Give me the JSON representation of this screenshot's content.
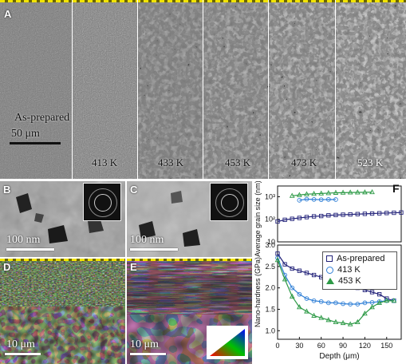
{
  "panel_a": {
    "letter": "A",
    "strip_labels": [
      "As-prepared",
      "413 K",
      "433 K",
      "453 K",
      "473 K",
      "523 K"
    ],
    "scale_label": "50 μm"
  },
  "panel_b": {
    "letter": "B",
    "scale_label": "100 nm"
  },
  "panel_c": {
    "letter": "C",
    "scale_label": "100 nm"
  },
  "panel_d": {
    "letter": "D",
    "scale_label": "10 μm"
  },
  "panel_e": {
    "letter": "E",
    "scale_label": "10 μm"
  },
  "panel_f": {
    "letter": "F",
    "legend": [
      "As-prepared",
      "413 K",
      "453 K"
    ],
    "colors": {
      "as_prepared": "#23237a",
      "k413": "#2f7fd6",
      "k453": "#2e9a47"
    }
  },
  "chart_data": [
    {
      "type": "scatter",
      "ylabel": "Average grain size (nm)",
      "y_scale": "log",
      "ylim": [
        10,
        3000
      ],
      "xlim": [
        0,
        170
      ],
      "y_tick_labels": [
        "10",
        "10²",
        "10³"
      ],
      "series": [
        {
          "name": "As-prepared",
          "x": [
            0,
            10,
            20,
            30,
            40,
            50,
            60,
            70,
            80,
            90,
            100,
            110,
            120,
            130,
            140,
            150,
            160,
            170
          ],
          "values": [
            80,
            95,
            105,
            115,
            125,
            135,
            140,
            150,
            155,
            160,
            165,
            170,
            175,
            180,
            185,
            190,
            195,
            200
          ]
        },
        {
          "name": "413 K",
          "x": [
            30,
            40,
            50,
            60,
            70,
            80
          ],
          "values": [
            700,
            780,
            760,
            740,
            760,
            750
          ]
        },
        {
          "name": "453 K",
          "x": [
            20,
            30,
            40,
            50,
            60,
            70,
            80,
            90,
            100,
            110,
            120,
            130
          ],
          "values": [
            1100,
            1200,
            1300,
            1350,
            1400,
            1450,
            1500,
            1520,
            1550,
            1560,
            1580,
            1600
          ]
        }
      ]
    },
    {
      "type": "scatter",
      "ylabel": "Nano-hardness (GPa)",
      "xlabel": "Depth (μm)",
      "ylim": [
        0.8,
        3.0
      ],
      "xlim": [
        0,
        170
      ],
      "x_tick_labels": [
        "0",
        "30",
        "60",
        "90",
        "120",
        "150"
      ],
      "y_tick_labels": [
        "1.0",
        "1.5",
        "2.0",
        "2.5",
        "3.0"
      ],
      "series": [
        {
          "name": "As-prepared",
          "x": [
            0,
            10,
            20,
            30,
            40,
            50,
            60,
            70,
            80,
            90,
            100,
            110,
            120,
            130,
            140,
            150,
            160
          ],
          "values": [
            2.8,
            2.55,
            2.45,
            2.4,
            2.35,
            2.3,
            2.25,
            2.2,
            2.15,
            2.1,
            2.05,
            2.0,
            1.95,
            1.9,
            1.85,
            1.75,
            1.7
          ]
        },
        {
          "name": "413 K",
          "x": [
            0,
            10,
            20,
            30,
            40,
            50,
            60,
            70,
            80,
            90,
            100,
            110,
            120,
            130,
            140,
            150,
            160
          ],
          "values": [
            2.7,
            2.3,
            2.0,
            1.85,
            1.75,
            1.7,
            1.68,
            1.65,
            1.65,
            1.63,
            1.62,
            1.62,
            1.65,
            1.66,
            1.68,
            1.7,
            1.7
          ]
        },
        {
          "name": "453 K",
          "x": [
            0,
            10,
            20,
            30,
            40,
            50,
            60,
            70,
            80,
            90,
            100,
            110,
            120,
            130,
            140,
            150,
            160
          ],
          "values": [
            2.65,
            2.2,
            1.8,
            1.55,
            1.45,
            1.35,
            1.3,
            1.25,
            1.2,
            1.18,
            1.15,
            1.2,
            1.4,
            1.55,
            1.65,
            1.7,
            1.7
          ]
        }
      ]
    }
  ]
}
